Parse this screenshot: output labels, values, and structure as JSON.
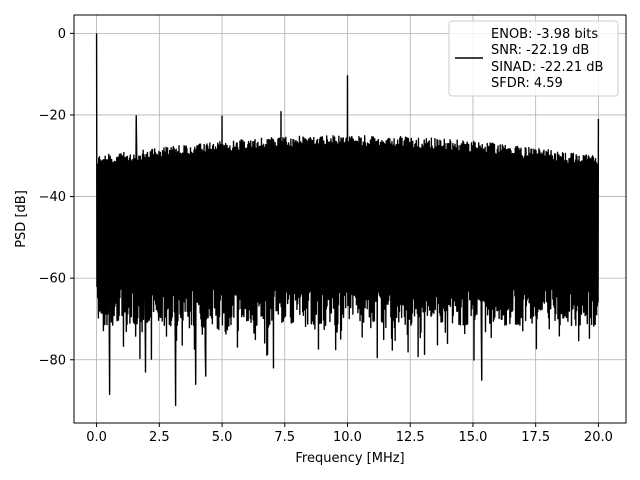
{
  "chart_data": {
    "type": "line",
    "title": "",
    "xlabel": "Frequency [MHz]",
    "ylabel": "PSD [dB]",
    "xlim": [
      -0.9,
      21.1
    ],
    "ylim": [
      -95.5,
      4.5
    ],
    "x_ticks": [
      0.0,
      2.5,
      5.0,
      7.5,
      10.0,
      12.5,
      15.0,
      17.5,
      20.0
    ],
    "x_tick_labels": [
      "0.0",
      "2.5",
      "5.0",
      "7.5",
      "10.0",
      "12.5",
      "15.0",
      "17.5",
      "20.0"
    ],
    "y_ticks": [
      0,
      -20,
      -40,
      -60,
      -80
    ],
    "y_tick_labels": [
      "0",
      "−20",
      "−40",
      "−60",
      "−80"
    ],
    "grid": true,
    "legend_position": "top-right",
    "series": [
      {
        "color": "#000000",
        "legend_lines": [
          "ENOB: -3.98 bits",
          "SNR: -22.19 dB",
          "SINAD: -22.21 dB",
          "SFDR: 4.59"
        ],
        "noise_floor": {
          "x_range": [
            0.0,
            20.0
          ],
          "upper_dB": [
            -30,
            -25
          ],
          "lower_dB": [
            -78,
            -62
          ],
          "min_dB": -91
        },
        "peaks": [
          {
            "x": 0.0,
            "y": 0.0
          },
          {
            "x": 1.58,
            "y": -20.2
          },
          {
            "x": 5.0,
            "y": -20.3
          },
          {
            "x": 7.35,
            "y": -19.2
          },
          {
            "x": 10.0,
            "y": -10.4
          },
          {
            "x": 20.0,
            "y": -21.0
          }
        ],
        "dips": [
          {
            "x": 0.52,
            "y": -88.5
          },
          {
            "x": 1.95,
            "y": -83.0
          },
          {
            "x": 3.15,
            "y": -91.2
          },
          {
            "x": 3.95,
            "y": -86.0
          },
          {
            "x": 4.35,
            "y": -84.0
          },
          {
            "x": 7.05,
            "y": -82.0
          },
          {
            "x": 15.35,
            "y": -85.0
          }
        ]
      }
    ]
  }
}
